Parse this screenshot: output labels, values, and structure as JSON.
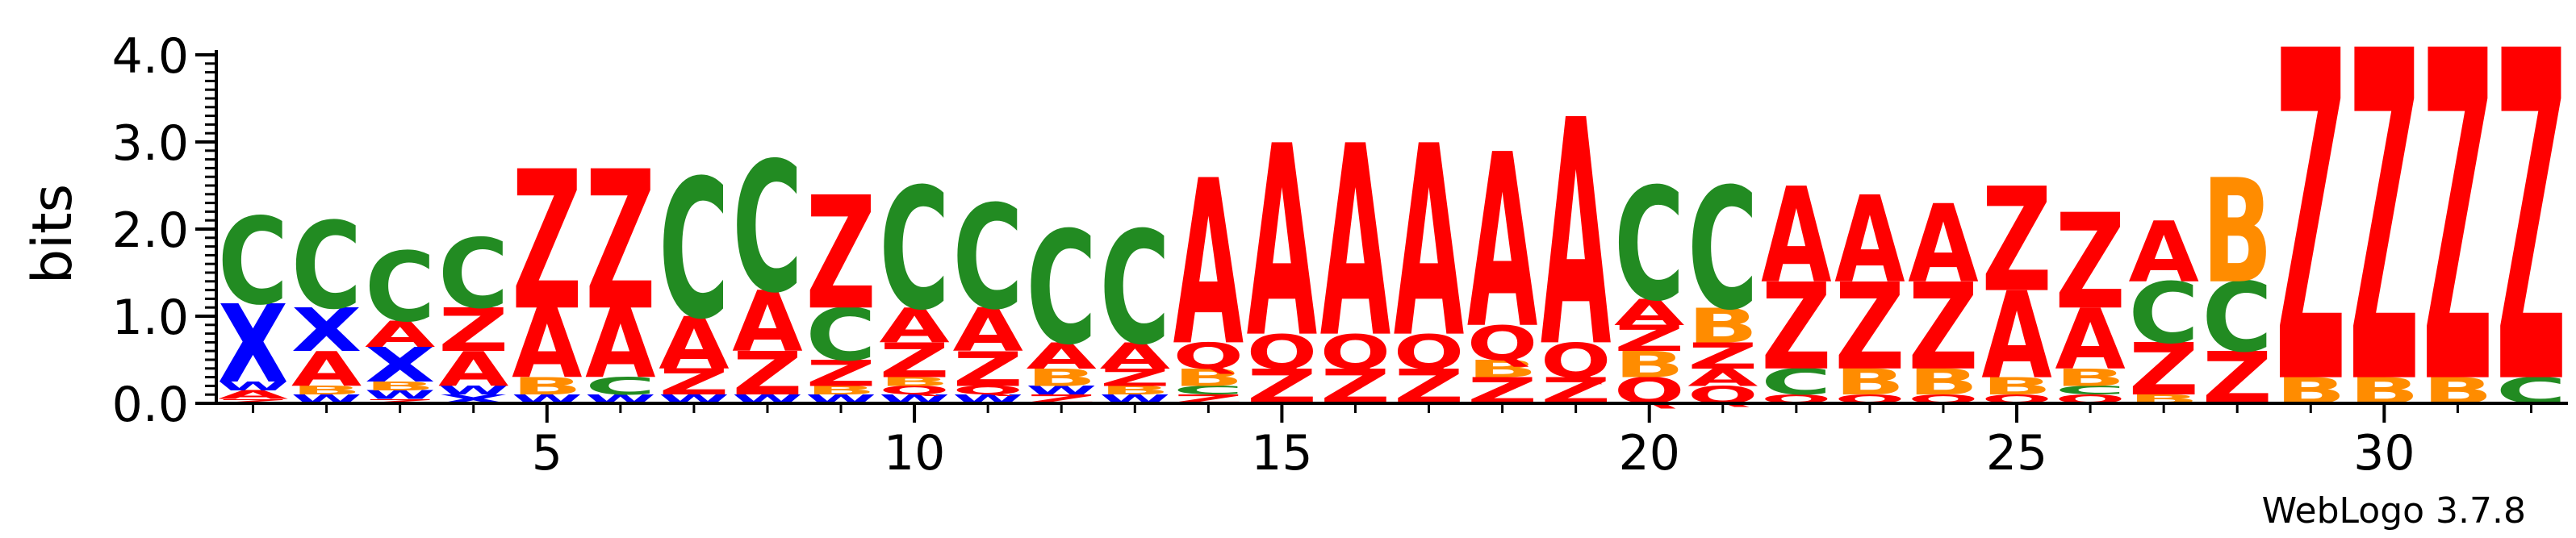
{
  "chart_data": {
    "type": "sequence-logo",
    "ylabel": "bits",
    "ylim": [
      0,
      4.0
    ],
    "yticks": [
      "0.0",
      "1.0",
      "2.0",
      "3.0",
      "4.0"
    ],
    "xticks": [
      5,
      10,
      15,
      20,
      25,
      30
    ],
    "x_range": [
      1,
      32
    ],
    "footer": "WebLogo 3.7.8",
    "colors": {
      "C": "#228b22",
      "X": "#0000ff",
      "W": "#0000ff",
      "A": "#ff0000",
      "Z": "#ff0000",
      "B": "#ff8c00",
      "Q": "#ff0000"
    },
    "positions": [
      {
        "pos": 1,
        "stack": [
          [
            "Z",
            0.05
          ],
          [
            "A",
            0.1
          ],
          [
            "W",
            0.1
          ],
          [
            "X",
            0.9
          ],
          [
            "C",
            1.0
          ]
        ]
      },
      {
        "pos": 2,
        "stack": [
          [
            "W",
            0.1
          ],
          [
            "B",
            0.1
          ],
          [
            "A",
            0.4
          ],
          [
            "X",
            0.5
          ],
          [
            "C",
            1.0
          ]
        ]
      },
      {
        "pos": 3,
        "stack": [
          [
            "Z",
            0.05
          ],
          [
            "W",
            0.1
          ],
          [
            "B",
            0.1
          ],
          [
            "X",
            0.4
          ],
          [
            "A",
            0.3
          ],
          [
            "C",
            0.8
          ]
        ]
      },
      {
        "pos": 4,
        "stack": [
          [
            "X",
            0.1
          ],
          [
            "W",
            0.1
          ],
          [
            "A",
            0.4
          ],
          [
            "Z",
            0.5
          ],
          [
            "C",
            0.8
          ]
        ]
      },
      {
        "pos": 5,
        "stack": [
          [
            "W",
            0.1
          ],
          [
            "B",
            0.2
          ],
          [
            "A",
            0.8
          ],
          [
            "Z",
            1.6
          ]
        ]
      },
      {
        "pos": 6,
        "stack": [
          [
            "W",
            0.1
          ],
          [
            "C",
            0.2
          ],
          [
            "A",
            0.8
          ],
          [
            "Z",
            1.6
          ]
        ]
      },
      {
        "pos": 7,
        "stack": [
          [
            "W",
            0.1
          ],
          [
            "Z",
            0.3
          ],
          [
            "A",
            0.6
          ],
          [
            "C",
            1.6
          ]
        ]
      },
      {
        "pos": 8,
        "stack": [
          [
            "W",
            0.1
          ],
          [
            "Z",
            0.5
          ],
          [
            "A",
            0.7
          ],
          [
            "C",
            1.5
          ]
        ]
      },
      {
        "pos": 9,
        "stack": [
          [
            "W",
            0.1
          ],
          [
            "B",
            0.1
          ],
          [
            "Z",
            0.3
          ],
          [
            "C",
            0.6
          ],
          [
            "Z",
            1.3
          ]
        ]
      },
      {
        "pos": 10,
        "stack": [
          [
            "W",
            0.1
          ],
          [
            "Q",
            0.1
          ],
          [
            "B",
            0.1
          ],
          [
            "Z",
            0.4
          ],
          [
            "A",
            0.4
          ],
          [
            "C",
            1.4
          ]
        ]
      },
      {
        "pos": 11,
        "stack": [
          [
            "W",
            0.1
          ],
          [
            "Q",
            0.1
          ],
          [
            "Z",
            0.4
          ],
          [
            "A",
            0.5
          ],
          [
            "C",
            1.2
          ]
        ]
      },
      {
        "pos": 12,
        "stack": [
          [
            "Z",
            0.1
          ],
          [
            "W",
            0.1
          ],
          [
            "B",
            0.2
          ],
          [
            "A",
            0.3
          ],
          [
            "C",
            1.3
          ]
        ]
      },
      {
        "pos": 13,
        "stack": [
          [
            "W",
            0.1
          ],
          [
            "B",
            0.1
          ],
          [
            "Z",
            0.2
          ],
          [
            "A",
            0.3
          ],
          [
            "C",
            1.3
          ]
        ]
      },
      {
        "pos": 14,
        "stack": [
          [
            "Z",
            0.1
          ],
          [
            "C",
            0.1
          ],
          [
            "B",
            0.2
          ],
          [
            "Q",
            0.3
          ],
          [
            "A",
            1.9
          ]
        ]
      },
      {
        "pos": 15,
        "stack": [
          [
            "Z",
            0.4
          ],
          [
            "Q",
            0.4
          ],
          [
            "A",
            2.2
          ]
        ]
      },
      {
        "pos": 16,
        "stack": [
          [
            "Z",
            0.4
          ],
          [
            "Q",
            0.4
          ],
          [
            "A",
            2.2
          ]
        ]
      },
      {
        "pos": 17,
        "stack": [
          [
            "Z",
            0.4
          ],
          [
            "Q",
            0.4
          ],
          [
            "A",
            2.2
          ]
        ]
      },
      {
        "pos": 18,
        "stack": [
          [
            "Z",
            0.3
          ],
          [
            "B",
            0.2
          ],
          [
            "Q",
            0.4
          ],
          [
            "A",
            2.0
          ]
        ]
      },
      {
        "pos": 19,
        "stack": [
          [
            "Z",
            0.3
          ],
          [
            "Q",
            0.4
          ],
          [
            "A",
            2.6
          ]
        ]
      },
      {
        "pos": 20,
        "stack": [
          [
            "Q",
            0.3
          ],
          [
            "B",
            0.3
          ],
          [
            "Z",
            0.3
          ],
          [
            "A",
            0.3
          ],
          [
            "C",
            1.3
          ]
        ]
      },
      {
        "pos": 21,
        "stack": [
          [
            "Q",
            0.2
          ],
          [
            "A",
            0.2
          ],
          [
            "Z",
            0.3
          ],
          [
            "B",
            0.4
          ],
          [
            "C",
            1.4
          ]
        ]
      },
      {
        "pos": 22,
        "stack": [
          [
            "Q",
            0.1
          ],
          [
            "C",
            0.3
          ],
          [
            "Z",
            1.0
          ],
          [
            "A",
            1.1
          ]
        ]
      },
      {
        "pos": 23,
        "stack": [
          [
            "Q",
            0.1
          ],
          [
            "B",
            0.3
          ],
          [
            "Z",
            1.0
          ],
          [
            "A",
            1.0
          ]
        ]
      },
      {
        "pos": 24,
        "stack": [
          [
            "Q",
            0.1
          ],
          [
            "B",
            0.3
          ],
          [
            "Z",
            1.0
          ],
          [
            "A",
            0.9
          ]
        ]
      },
      {
        "pos": 25,
        "stack": [
          [
            "Q",
            0.1
          ],
          [
            "B",
            0.2
          ],
          [
            "A",
            1.0
          ],
          [
            "Z",
            1.2
          ]
        ]
      },
      {
        "pos": 26,
        "stack": [
          [
            "Q",
            0.1
          ],
          [
            "C",
            0.1
          ],
          [
            "B",
            0.2
          ],
          [
            "A",
            0.7
          ],
          [
            "Z",
            1.1
          ]
        ]
      },
      {
        "pos": 27,
        "stack": [
          [
            "B",
            0.1
          ],
          [
            "Z",
            0.6
          ],
          [
            "C",
            0.7
          ],
          [
            "A",
            0.7
          ]
        ]
      },
      {
        "pos": 28,
        "stack": [
          [
            "Z",
            0.6
          ],
          [
            "C",
            0.8
          ],
          [
            "B",
            1.2
          ]
        ]
      },
      {
        "pos": 29,
        "stack": [
          [
            "B",
            0.3
          ],
          [
            "Z",
            3.8
          ]
        ]
      },
      {
        "pos": 30,
        "stack": [
          [
            "B",
            0.3
          ],
          [
            "Z",
            3.8
          ]
        ]
      },
      {
        "pos": 31,
        "stack": [
          [
            "B",
            0.3
          ],
          [
            "Z",
            3.8
          ]
        ]
      },
      {
        "pos": 32,
        "stack": [
          [
            "C",
            0.3
          ],
          [
            "Z",
            3.8
          ]
        ]
      }
    ]
  }
}
